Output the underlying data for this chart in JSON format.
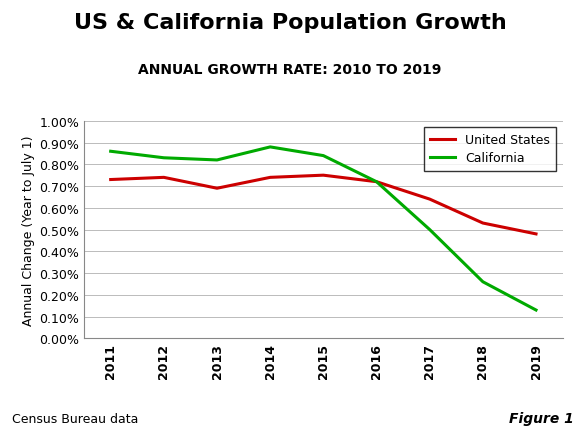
{
  "title": "US & California Population Growth",
  "subtitle": "ANNUAL GROWTH RATE: 2010 TO 2019",
  "ylabel": "Annual Change (Year to July 1)",
  "years": [
    2011,
    2012,
    2013,
    2014,
    2015,
    2016,
    2017,
    2018,
    2019
  ],
  "us_values": [
    0.0073,
    0.0074,
    0.0069,
    0.0074,
    0.0075,
    0.0072,
    0.0064,
    0.0053,
    0.0048
  ],
  "ca_values": [
    0.0086,
    0.0083,
    0.0082,
    0.0088,
    0.0084,
    0.0072,
    0.005,
    0.0026,
    0.0013
  ],
  "us_color": "#cc0000",
  "ca_color": "#00aa00",
  "us_label": "United States",
  "ca_label": "California",
  "ylim_min": 0.0,
  "ylim_max": 0.01,
  "ytick_step": 0.001,
  "footnote_left": "Census Bureau data",
  "footnote_right": "Figure 1",
  "line_width": 2.2,
  "bg_color": "#ffffff",
  "grid_color": "#bbbbbb",
  "title_fontsize": 16,
  "subtitle_fontsize": 10,
  "ylabel_fontsize": 9,
  "tick_fontsize": 9,
  "legend_fontsize": 9
}
